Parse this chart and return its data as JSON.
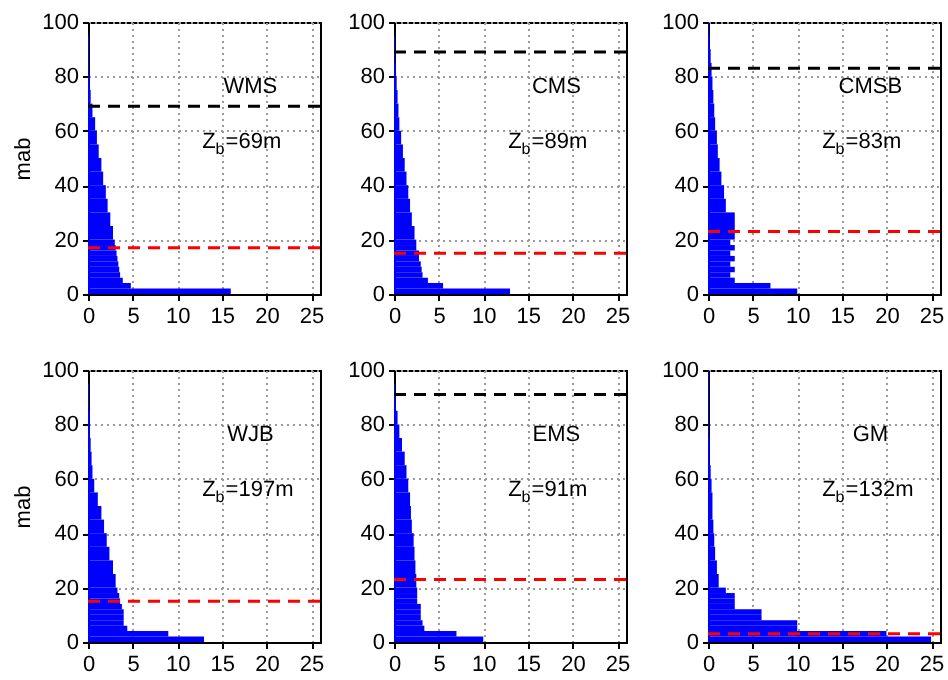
{
  "chart_data": [
    {
      "type": "histogram",
      "orientation": "horizontal",
      "ylabel": "mab",
      "color": "#0000ff",
      "bins": [
        0,
        2,
        4,
        6,
        8,
        10,
        12,
        14,
        16,
        18,
        20,
        25,
        30,
        35,
        40,
        45,
        50,
        55,
        60,
        65,
        70,
        75,
        80,
        85,
        90,
        95
      ],
      "values": [
        16,
        4.8,
        3.9,
        3.6,
        3.5,
        3.4,
        3.3,
        3.2,
        3.1,
        3.0,
        2.8,
        2.5,
        2.2,
        2.0,
        1.7,
        1.5,
        1.2,
        1.0,
        0.8,
        0.5,
        0.3,
        0.2,
        0.1,
        0.1,
        0.1
      ],
      "xlim": [
        0,
        26
      ],
      "xticks": [
        0,
        5,
        10,
        15,
        20,
        25
      ],
      "ylim": [
        0,
        100
      ],
      "yticks": [
        0,
        20,
        40,
        60,
        80,
        100
      ],
      "grid": true,
      "ref_lines": [
        {
          "axis": "y",
          "value": 69,
          "color": "#000000",
          "line_style": "dashed"
        },
        {
          "axis": "y",
          "value": 17,
          "color": "#ff0000",
          "line_style": "dashed"
        }
      ],
      "annotations": [
        "WMS",
        "Z$_{b}$=69m"
      ]
    },
    {
      "type": "histogram",
      "orientation": "horizontal",
      "color": "#0000ff",
      "bins": [
        0,
        2,
        4,
        6,
        8,
        10,
        12,
        14,
        16,
        18,
        20,
        25,
        30,
        35,
        40,
        45,
        50,
        55,
        60,
        65,
        70,
        75,
        80,
        85,
        90,
        95
      ],
      "values": [
        13,
        5.5,
        3.8,
        3.2,
        3.1,
        3.0,
        2.8,
        2.8,
        2.5,
        2.5,
        2.3,
        2.0,
        1.8,
        1.6,
        1.4,
        1.2,
        1.0,
        0.8,
        0.6,
        0.5,
        0.4,
        0.3,
        0.2,
        0.1,
        0.1
      ],
      "xlim": [
        0,
        26
      ],
      "xticks": [
        0,
        5,
        10,
        15,
        20,
        25
      ],
      "ylim": [
        0,
        100
      ],
      "yticks": [
        0,
        20,
        40,
        60,
        80,
        100
      ],
      "grid": true,
      "ref_lines": [
        {
          "axis": "y",
          "value": 89,
          "color": "#000000",
          "line_style": "dashed"
        },
        {
          "axis": "y",
          "value": 15,
          "color": "#ff0000",
          "line_style": "dashed"
        }
      ],
      "annotations": [
        "CMS",
        "Z$_{b}$=89m"
      ]
    },
    {
      "type": "histogram",
      "orientation": "horizontal",
      "color": "#0000ff",
      "bins": [
        0,
        2,
        4,
        6,
        8,
        10,
        12,
        14,
        16,
        18,
        20,
        25,
        30,
        35,
        40,
        45,
        50,
        55,
        60,
        65,
        70,
        75,
        80,
        85,
        90,
        95,
        100
      ],
      "values": [
        10,
        7,
        3,
        2.5,
        3,
        2.5,
        3,
        2.5,
        3,
        2.5,
        3,
        3,
        2,
        1.8,
        1.5,
        1.3,
        1.1,
        1.0,
        0.8,
        0.7,
        0.6,
        0.5,
        0.4,
        0.3,
        0.2,
        0.1
      ],
      "xlim": [
        0,
        26
      ],
      "xticks": [
        0,
        5,
        10,
        15,
        20,
        25
      ],
      "ylim": [
        0,
        100
      ],
      "yticks": [
        0,
        20,
        40,
        60,
        80,
        100
      ],
      "grid": true,
      "ref_lines": [
        {
          "axis": "y",
          "value": 83,
          "color": "#000000",
          "line_style": "dashed"
        },
        {
          "axis": "y",
          "value": 23,
          "color": "#ff0000",
          "line_style": "dashed"
        }
      ],
      "annotations": [
        "CMSB",
        "Z$_{b}$=83m"
      ]
    },
    {
      "type": "histogram",
      "orientation": "horizontal",
      "ylabel": "mab",
      "color": "#0000ff",
      "bins": [
        0,
        2,
        4,
        6,
        8,
        10,
        12,
        14,
        16,
        18,
        20,
        25,
        30,
        35,
        40,
        45,
        50,
        55,
        60,
        65,
        70,
        75,
        80,
        85,
        90,
        95
      ],
      "values": [
        13,
        9,
        4.4,
        4,
        4,
        4,
        3.8,
        3.6,
        3.5,
        3.3,
        3.1,
        2.8,
        2.4,
        2.1,
        1.8,
        1.5,
        1.1,
        0.7,
        0.5,
        0.4,
        0.3,
        0.2,
        0.2,
        0.1,
        0.1
      ],
      "xlim": [
        0,
        26
      ],
      "xticks": [
        0,
        5,
        10,
        15,
        20,
        25
      ],
      "ylim": [
        0,
        100
      ],
      "yticks": [
        0,
        20,
        40,
        60,
        80,
        100
      ],
      "grid": true,
      "ref_lines": [
        {
          "axis": "y",
          "value": 15,
          "color": "#ff0000",
          "line_style": "dashed"
        }
      ],
      "annotations": [
        "WJB",
        "Z$_{b}$=197m"
      ]
    },
    {
      "type": "histogram",
      "orientation": "horizontal",
      "color": "#0000ff",
      "bins": [
        0,
        2,
        4,
        6,
        8,
        10,
        12,
        14,
        16,
        18,
        20,
        25,
        30,
        35,
        40,
        45,
        50,
        55,
        60,
        65,
        70,
        75,
        80,
        85,
        90,
        95
      ],
      "values": [
        10,
        7,
        3.4,
        3.2,
        3,
        3,
        3,
        2.6,
        2.6,
        2.6,
        2.5,
        2.4,
        2.3,
        2.2,
        2.0,
        1.9,
        1.8,
        1.6,
        1.4,
        1.2,
        0.9,
        0.6,
        0.4,
        0.2,
        0.1
      ],
      "xlim": [
        0,
        26
      ],
      "xticks": [
        0,
        5,
        10,
        15,
        20,
        25
      ],
      "ylim": [
        0,
        100
      ],
      "yticks": [
        0,
        20,
        40,
        60,
        80,
        100
      ],
      "grid": true,
      "ref_lines": [
        {
          "axis": "y",
          "value": 91,
          "color": "#000000",
          "line_style": "dashed"
        },
        {
          "axis": "y",
          "value": 23,
          "color": "#ff0000",
          "line_style": "dashed"
        }
      ],
      "annotations": [
        "EMS",
        "Z$_{b}$=91m"
      ]
    },
    {
      "type": "histogram",
      "orientation": "horizontal",
      "color": "#0000ff",
      "bins": [
        0,
        2,
        4,
        6,
        8,
        10,
        12,
        14,
        16,
        18,
        20,
        25,
        30,
        35,
        40,
        45,
        50,
        55,
        60,
        65,
        70,
        75,
        80,
        85,
        90,
        95,
        100
      ],
      "values": [
        25,
        20,
        10,
        10,
        6,
        6,
        3,
        3,
        3,
        2,
        1.2,
        1.0,
        0.8,
        0.7,
        0.6,
        0.5,
        0.5,
        0.4,
        0.3,
        0.2,
        0.2,
        0.1,
        0.1,
        0.1,
        0.1,
        0.1
      ],
      "xlim": [
        0,
        26
      ],
      "xticks": [
        0,
        5,
        10,
        15,
        20,
        25
      ],
      "ylim": [
        0,
        100
      ],
      "yticks": [
        0,
        20,
        40,
        60,
        80,
        100
      ],
      "grid": true,
      "ref_lines": [
        {
          "axis": "y",
          "value": 3,
          "color": "#ff0000",
          "line_style": "dashed"
        }
      ],
      "annotations": [
        "GM",
        "Z$_{b}$=132m"
      ]
    }
  ]
}
